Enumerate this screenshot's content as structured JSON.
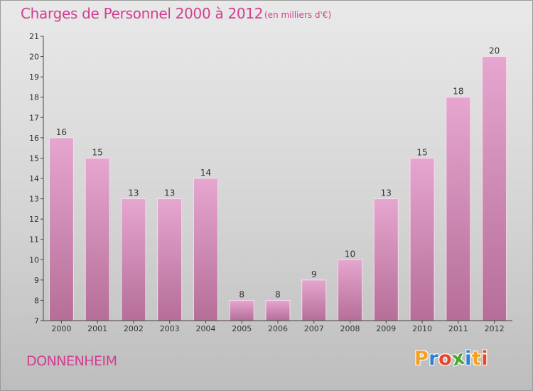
{
  "header": {
    "title": "Charges de Personnel 2000 à 2012",
    "unit": "(en milliers d'€)"
  },
  "footer": {
    "commune": "DONNENHEIM",
    "logo": {
      "letters": [
        "P",
        "r",
        "o",
        "x",
        "i",
        "t",
        "i"
      ],
      "colors": [
        "#f5a01e",
        "#2e7fd1",
        "#e8462a",
        "#4aa832",
        "#2e7fd1",
        "#f5a01e",
        "#e8462a"
      ]
    }
  },
  "colors": {
    "accent": "#d33d8f",
    "bar_top": "#e6a6cf",
    "bar_bottom": "#b56e98"
  },
  "chart_data": {
    "type": "bar",
    "title": "Charges de Personnel 2000 à 2012",
    "categories": [
      "2000",
      "2001",
      "2002",
      "2003",
      "2004",
      "2005",
      "2006",
      "2007",
      "2008",
      "2009",
      "2010",
      "2011",
      "2012"
    ],
    "values": [
      16,
      15,
      13,
      13,
      14,
      8,
      8,
      9,
      10,
      13,
      15,
      18,
      20
    ],
    "ylim": [
      7,
      21
    ],
    "yticks": [
      7,
      8,
      9,
      10,
      11,
      12,
      13,
      14,
      15,
      16,
      17,
      18,
      19,
      20,
      21
    ],
    "grid": false,
    "legend": "none"
  }
}
